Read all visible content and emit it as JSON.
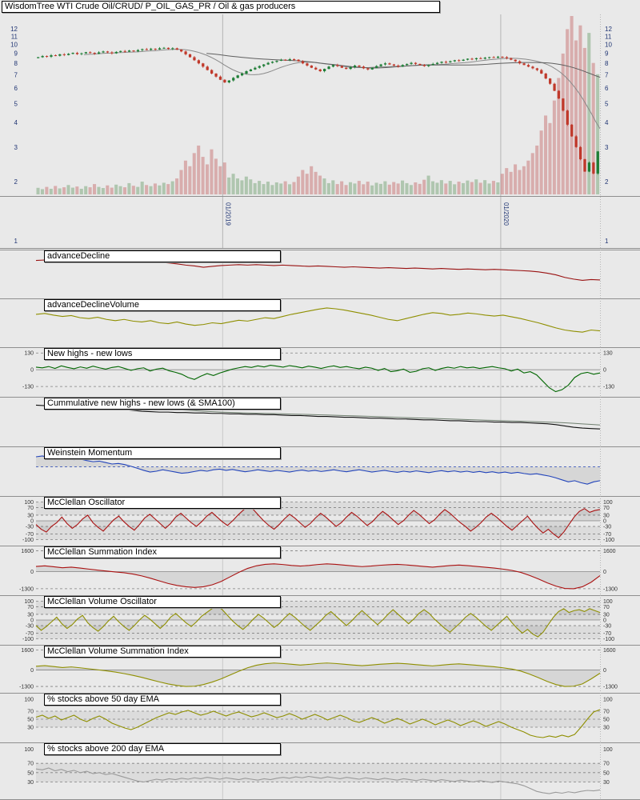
{
  "date_axis": {
    "labels": [
      "01/2019",
      "01/2020"
    ]
  },
  "colors": {
    "background": "#e9e9e9",
    "price_tick": "#1f3473",
    "tick": "#333333"
  },
  "chart_data": [
    {
      "type": "candlestick",
      "title": "WisdomTree WTI Crude Oil/CRUD/ P_OIL_GAS_PR / Oil & gas producers",
      "yscale": "log",
      "yticks": [
        12,
        11,
        10,
        9,
        8,
        7,
        6,
        5,
        4,
        3,
        2,
        1
      ],
      "x_gridline_labels": [
        "01/2019",
        "01/2020"
      ],
      "up_color": "#1e7d36",
      "down_color": "#c0392b",
      "close": [
        8.6,
        8.72,
        8.65,
        8.8,
        8.75,
        8.9,
        8.82,
        8.95,
        9.05,
        8.92,
        9.0,
        9.12,
        9.05,
        8.95,
        9.1,
        9.2,
        9.1,
        9.0,
        9.15,
        9.25,
        9.18,
        9.3,
        9.22,
        9.35,
        9.45,
        9.38,
        9.5,
        9.42,
        9.55,
        9.6,
        9.48,
        9.55,
        9.4,
        9.2,
        8.9,
        8.6,
        8.3,
        8.0,
        7.7,
        7.4,
        7.1,
        6.85,
        6.6,
        6.4,
        6.55,
        6.75,
        6.95,
        7.1,
        7.3,
        7.45,
        7.6,
        7.75,
        7.9,
        8.05,
        8.15,
        8.25,
        8.35,
        8.3,
        8.4,
        8.35,
        8.2,
        8.0,
        7.8,
        7.6,
        7.45,
        7.3,
        7.5,
        7.7,
        7.85,
        7.75,
        7.6,
        7.5,
        7.65,
        7.8,
        7.7,
        7.55,
        7.45,
        7.6,
        7.75,
        7.9,
        8.0,
        7.9,
        7.8,
        7.7,
        7.85,
        7.95,
        8.05,
        7.95,
        7.85,
        7.75,
        7.85,
        7.95,
        8.05,
        8.15,
        8.1,
        8.2,
        8.3,
        8.25,
        8.35,
        8.45,
        8.4,
        8.5,
        8.45,
        8.55,
        8.6,
        8.55,
        8.65,
        8.6,
        8.5,
        8.35,
        8.2,
        8.0,
        7.85,
        7.7,
        7.55,
        7.4,
        7.1,
        6.7,
        6.3,
        5.8,
        5.3,
        4.6,
        3.9,
        3.4,
        3.0,
        2.6,
        2.25,
        2.5,
        2.2,
        2.85
      ],
      "volume": [
        35,
        28,
        40,
        30,
        45,
        32,
        38,
        50,
        36,
        42,
        30,
        44,
        38,
        55,
        40,
        34,
        48,
        36,
        52,
        44,
        38,
        60,
        46,
        40,
        68,
        50,
        44,
        58,
        48,
        62,
        55,
        70,
        85,
        130,
        180,
        150,
        220,
        260,
        200,
        160,
        240,
        190,
        150,
        170,
        90,
        110,
        85,
        75,
        95,
        80,
        60,
        72,
        55,
        68,
        50,
        64,
        58,
        70,
        54,
        66,
        95,
        130,
        110,
        150,
        120,
        100,
        85,
        60,
        75,
        55,
        70,
        50,
        65,
        58,
        72,
        54,
        68,
        48,
        62,
        56,
        70,
        52,
        66,
        58,
        74,
        60,
        50,
        64,
        56,
        78,
        100,
        70,
        62,
        76,
        58,
        72,
        54,
        68,
        60,
        74,
        66,
        80,
        62,
        76,
        58,
        72,
        64,
        110,
        140,
        120,
        160,
        130,
        150,
        180,
        220,
        260,
        340,
        420,
        380,
        500,
        620,
        750,
        880,
        950,
        820,
        900,
        780,
        860,
        700,
        640
      ]
    },
    {
      "type": "line",
      "title": "advanceDecline",
      "color": "#991111",
      "ylim": [
        0,
        1
      ],
      "yticks": [],
      "values": [
        0.82,
        0.83,
        0.82,
        0.81,
        0.82,
        0.81,
        0.8,
        0.81,
        0.8,
        0.79,
        0.8,
        0.79,
        0.78,
        0.77,
        0.78,
        0.76,
        0.74,
        0.71,
        0.69,
        0.66,
        0.68,
        0.7,
        0.71,
        0.72,
        0.71,
        0.72,
        0.71,
        0.7,
        0.71,
        0.7,
        0.69,
        0.68,
        0.69,
        0.68,
        0.67,
        0.66,
        0.67,
        0.66,
        0.65,
        0.64,
        0.65,
        0.64,
        0.63,
        0.64,
        0.63,
        0.62,
        0.63,
        0.62,
        0.61,
        0.62,
        0.61,
        0.6,
        0.61,
        0.6,
        0.59,
        0.58,
        0.57,
        0.55,
        0.52,
        0.48,
        0.42,
        0.38,
        0.35,
        0.37,
        0.36
      ]
    },
    {
      "type": "line",
      "title": "advanceDeclineVolume",
      "color": "#8f8f00",
      "ylim": [
        0,
        1
      ],
      "yticks": [],
      "values": [
        0.7,
        0.72,
        0.68,
        0.65,
        0.67,
        0.62,
        0.6,
        0.63,
        0.58,
        0.55,
        0.58,
        0.54,
        0.52,
        0.55,
        0.5,
        0.48,
        0.52,
        0.47,
        0.44,
        0.46,
        0.5,
        0.48,
        0.52,
        0.56,
        0.54,
        0.58,
        0.62,
        0.6,
        0.65,
        0.7,
        0.74,
        0.78,
        0.82,
        0.85,
        0.83,
        0.8,
        0.76,
        0.72,
        0.68,
        0.63,
        0.58,
        0.55,
        0.6,
        0.65,
        0.7,
        0.74,
        0.72,
        0.68,
        0.7,
        0.73,
        0.71,
        0.68,
        0.66,
        0.68,
        0.64,
        0.6,
        0.55,
        0.5,
        0.44,
        0.38,
        0.33,
        0.3,
        0.28,
        0.33,
        0.31
      ]
    },
    {
      "type": "line",
      "title": "New highs - new lows",
      "color": "#006600",
      "ylim": [
        -185,
        150
      ],
      "yticks": [
        130,
        0,
        -130
      ],
      "dashed": [
        130,
        -130
      ],
      "solid": [
        0
      ],
      "values": [
        20,
        15,
        25,
        10,
        30,
        18,
        8,
        22,
        12,
        28,
        15,
        5,
        18,
        25,
        10,
        -5,
        8,
        15,
        -10,
        5,
        12,
        -8,
        -20,
        -35,
        -60,
        -75,
        -50,
        -30,
        -45,
        -25,
        -10,
        5,
        15,
        25,
        18,
        30,
        22,
        35,
        28,
        20,
        32,
        25,
        15,
        28,
        20,
        10,
        22,
        30,
        18,
        25,
        15,
        8,
        20,
        12,
        -5,
        10,
        -15,
        -8,
        5,
        -20,
        -12,
        8,
        15,
        -5,
        10,
        20,
        12,
        25,
        15,
        20,
        10,
        18,
        25,
        15,
        8,
        -10,
        5,
        -25,
        -15,
        -40,
        -90,
        -140,
        -170,
        -155,
        -120,
        -60,
        -30,
        -20,
        -35,
        -25
      ]
    },
    {
      "type": "line",
      "title": "Cummulative new highs - new lows (& SMA100)",
      "color": "#111111",
      "sma": 12,
      "sma_color": "#6f7f6f",
      "ylim": [
        0,
        1
      ],
      "yticks": [],
      "values": [
        0.88,
        0.87,
        0.87,
        0.86,
        0.85,
        0.85,
        0.84,
        0.83,
        0.82,
        0.8,
        0.78,
        0.76,
        0.74,
        0.73,
        0.72,
        0.72,
        0.71,
        0.71,
        0.7,
        0.7,
        0.69,
        0.69,
        0.68,
        0.68,
        0.67,
        0.67,
        0.66,
        0.66,
        0.65,
        0.64,
        0.64,
        0.63,
        0.62,
        0.62,
        0.61,
        0.6,
        0.6,
        0.59,
        0.58,
        0.58,
        0.57,
        0.56,
        0.56,
        0.55,
        0.54,
        0.54,
        0.53,
        0.52,
        0.52,
        0.51,
        0.5,
        0.5,
        0.49,
        0.49,
        0.48,
        0.48,
        0.47,
        0.46,
        0.45,
        0.43,
        0.4,
        0.37,
        0.35,
        0.34,
        0.33
      ]
    },
    {
      "type": "line",
      "title": "Weinstein Momentum",
      "color": "#2244bb",
      "ylim": [
        -0.9,
        0.6
      ],
      "yticks": [],
      "dashed": [
        0
      ],
      "dash_color": "#2244bb",
      "fill_to": 0,
      "values": [
        0.35,
        0.38,
        0.33,
        0.3,
        0.32,
        0.28,
        0.25,
        0.27,
        0.22,
        0.18,
        0.2,
        0.15,
        0.1,
        0.12,
        0.08,
        0.02,
        -0.05,
        -0.12,
        -0.18,
        -0.15,
        -0.1,
        -0.14,
        -0.18,
        -0.22,
        -0.2,
        -0.16,
        -0.12,
        -0.15,
        -0.1,
        -0.08,
        -0.12,
        -0.09,
        -0.13,
        -0.17,
        -0.14,
        -0.1,
        -0.13,
        -0.16,
        -0.12,
        -0.15,
        -0.18,
        -0.14,
        -0.11,
        -0.15,
        -0.12,
        -0.16,
        -0.13,
        -0.1,
        -0.14,
        -0.17,
        -0.13,
        -0.1,
        -0.14,
        -0.18,
        -0.15,
        -0.12,
        -0.16,
        -0.19,
        -0.15,
        -0.18,
        -0.14,
        -0.17,
        -0.2,
        -0.16,
        -0.13,
        -0.17,
        -0.14,
        -0.18,
        -0.15,
        -0.19,
        -0.16,
        -0.2,
        -0.17,
        -0.21,
        -0.18,
        -0.22,
        -0.19,
        -0.23,
        -0.26,
        -0.24,
        -0.28,
        -0.32,
        -0.38,
        -0.45,
        -0.52,
        -0.48,
        -0.55,
        -0.6,
        -0.52,
        -0.48
      ]
    },
    {
      "type": "line",
      "title": "McClellan Oscillator",
      "color": "#aa1111",
      "ylim": [
        -115,
        115
      ],
      "yticks": [
        100,
        70,
        30,
        0,
        -30,
        -70,
        -100
      ],
      "dashed": [
        100,
        70,
        30,
        -30,
        -70,
        -100
      ],
      "solid": [
        0
      ],
      "bands": [
        [
          30,
          100
        ],
        [
          -30,
          -100
        ]
      ],
      "fill_to": 0,
      "values": [
        -20,
        -45,
        -60,
        -30,
        -10,
        20,
        -15,
        -40,
        -20,
        10,
        30,
        -10,
        -35,
        -55,
        -25,
        5,
        25,
        -5,
        -30,
        -50,
        -20,
        15,
        35,
        10,
        -15,
        -40,
        -15,
        20,
        40,
        15,
        -10,
        -30,
        -5,
        25,
        45,
        20,
        -5,
        -25,
        0,
        30,
        55,
        80,
        60,
        30,
        0,
        -25,
        -45,
        -20,
        10,
        35,
        15,
        -10,
        -35,
        -15,
        15,
        40,
        20,
        -5,
        -30,
        -10,
        20,
        45,
        25,
        0,
        -25,
        -5,
        25,
        50,
        30,
        5,
        -20,
        0,
        30,
        55,
        35,
        10,
        -15,
        5,
        35,
        60,
        40,
        15,
        -10,
        -30,
        -55,
        -35,
        -10,
        20,
        40,
        20,
        -5,
        -30,
        -50,
        -25,
        0,
        25,
        -10,
        -40,
        -65,
        -45,
        -70,
        -90,
        -60,
        -20,
        20,
        50,
        65,
        45,
        55,
        60
      ]
    },
    {
      "type": "line",
      "title": "McClellan Summation Index",
      "color": "#aa1111",
      "ylim": [
        -1550,
        1750
      ],
      "yticks": [
        1600,
        0,
        -1300
      ],
      "dashed": [
        1600,
        -1300
      ],
      "solid": [
        0
      ],
      "fill_to": 0,
      "values": [
        400,
        450,
        380,
        300,
        350,
        280,
        200,
        120,
        50,
        -20,
        -80,
        -180,
        -320,
        -500,
        -700,
        -900,
        -1050,
        -1150,
        -1200,
        -1150,
        -1000,
        -750,
        -400,
        -50,
        250,
        450,
        560,
        600,
        550,
        480,
        430,
        480,
        550,
        600,
        560,
        500,
        440,
        390,
        430,
        490,
        530,
        560,
        520,
        460,
        400,
        350,
        410,
        470,
        510,
        460,
        400,
        340,
        280,
        200,
        100,
        -50,
        -280,
        -550,
        -850,
        -1100,
        -1280,
        -1300,
        -1150,
        -800,
        -300
      ]
    },
    {
      "type": "line",
      "title": "McClellan Volume Oscillator",
      "color": "#8f8f00",
      "ylim": [
        -115,
        115
      ],
      "yticks": [
        100,
        70,
        30,
        0,
        -30,
        -70,
        -100
      ],
      "dashed": [
        100,
        70,
        30,
        -30,
        -70,
        -100
      ],
      "solid": [
        0
      ],
      "bands": [
        [
          30,
          100
        ],
        [
          -30,
          -100
        ]
      ],
      "fill_to": 0,
      "values": [
        -30,
        -55,
        -35,
        -10,
        15,
        -20,
        -45,
        -25,
        5,
        25,
        -15,
        -40,
        -60,
        -35,
        -5,
        20,
        -10,
        -35,
        -55,
        -30,
        0,
        25,
        5,
        -20,
        -45,
        -20,
        15,
        35,
        10,
        -15,
        -35,
        -10,
        20,
        40,
        60,
        75,
        55,
        25,
        -5,
        -30,
        -50,
        -25,
        5,
        30,
        10,
        -15,
        -40,
        -20,
        10,
        35,
        15,
        -10,
        -35,
        -55,
        -30,
        -5,
        25,
        45,
        20,
        -5,
        -30,
        -5,
        25,
        50,
        25,
        0,
        -25,
        0,
        30,
        55,
        30,
        5,
        -20,
        5,
        35,
        55,
        35,
        5,
        -20,
        -45,
        -65,
        -40,
        -15,
        15,
        35,
        15,
        -10,
        -35,
        -55,
        -30,
        -5,
        20,
        -15,
        -45,
        -70,
        -50,
        -75,
        -90,
        -65,
        -25,
        15,
        45,
        60,
        40,
        50,
        55,
        45,
        60,
        50,
        40
      ]
    },
    {
      "type": "line",
      "title": "McClellan Volume Summation Index",
      "color": "#8f8f00",
      "ylim": [
        -1550,
        1750
      ],
      "yticks": [
        1600,
        0,
        -1300
      ],
      "dashed": [
        1600,
        -1300
      ],
      "solid": [
        0
      ],
      "fill_to": 0,
      "values": [
        300,
        350,
        280,
        200,
        250,
        180,
        100,
        20,
        -60,
        -160,
        -280,
        -420,
        -580,
        -760,
        -940,
        -1100,
        -1220,
        -1300,
        -1280,
        -1150,
        -950,
        -700,
        -400,
        -100,
        180,
        380,
        500,
        560,
        520,
        460,
        400,
        450,
        520,
        560,
        520,
        460,
        400,
        350,
        400,
        460,
        500,
        540,
        500,
        440,
        380,
        330,
        390,
        450,
        490,
        440,
        380,
        320,
        260,
        180,
        80,
        -80,
        -320,
        -600,
        -900,
        -1150,
        -1300,
        -1280,
        -1100,
        -700,
        -250
      ]
    },
    {
      "type": "line",
      "title": "% stocks above 50 day EMA",
      "color": "#8f8f00",
      "ylim": [
        0,
        108
      ],
      "yticks": [
        100,
        70,
        50,
        30
      ],
      "dashed": [
        70,
        50,
        30
      ],
      "bands": [
        [
          30,
          70
        ]
      ],
      "values": [
        55,
        60,
        52,
        58,
        48,
        54,
        60,
        50,
        44,
        52,
        58,
        50,
        40,
        34,
        28,
        24,
        30,
        38,
        46,
        54,
        60,
        66,
        62,
        68,
        72,
        66,
        60,
        64,
        70,
        64,
        58,
        64,
        68,
        62,
        56,
        60,
        66,
        60,
        54,
        58,
        64,
        58,
        50,
        56,
        62,
        56,
        48,
        54,
        60,
        54,
        46,
        42,
        48,
        54,
        48,
        40,
        46,
        52,
        46,
        38,
        44,
        50,
        44,
        36,
        42,
        48,
        42,
        34,
        40,
        46,
        40,
        32,
        38,
        44,
        38,
        30,
        24,
        18,
        10,
        6,
        4,
        8,
        5,
        10,
        6,
        12,
        30,
        50,
        68,
        74
      ]
    },
    {
      "type": "line",
      "title": "% stocks above 200 day EMA",
      "color": "#9a9a9a",
      "ylim": [
        0,
        108
      ],
      "yticks": [
        100,
        70,
        50,
        30
      ],
      "dashed": [
        70,
        50,
        30
      ],
      "bands": [
        [
          30,
          70
        ]
      ],
      "values": [
        58,
        56,
        60,
        54,
        57,
        52,
        55,
        50,
        53,
        48,
        50,
        46,
        48,
        44,
        40,
        36,
        32,
        30,
        33,
        36,
        34,
        37,
        35,
        38,
        36,
        39,
        37,
        40,
        38,
        36,
        39,
        37,
        35,
        38,
        36,
        34,
        37,
        35,
        38,
        40,
        38,
        41,
        39,
        42,
        40,
        38,
        41,
        39,
        37,
        40,
        38,
        36,
        39,
        37,
        35,
        38,
        36,
        34,
        37,
        35,
        33,
        36,
        34,
        32,
        35,
        33,
        31,
        34,
        32,
        30,
        33,
        31,
        29,
        32,
        30,
        28,
        26,
        22,
        16,
        10,
        7,
        5,
        8,
        6,
        9,
        7,
        10,
        12,
        11,
        13
      ]
    }
  ]
}
